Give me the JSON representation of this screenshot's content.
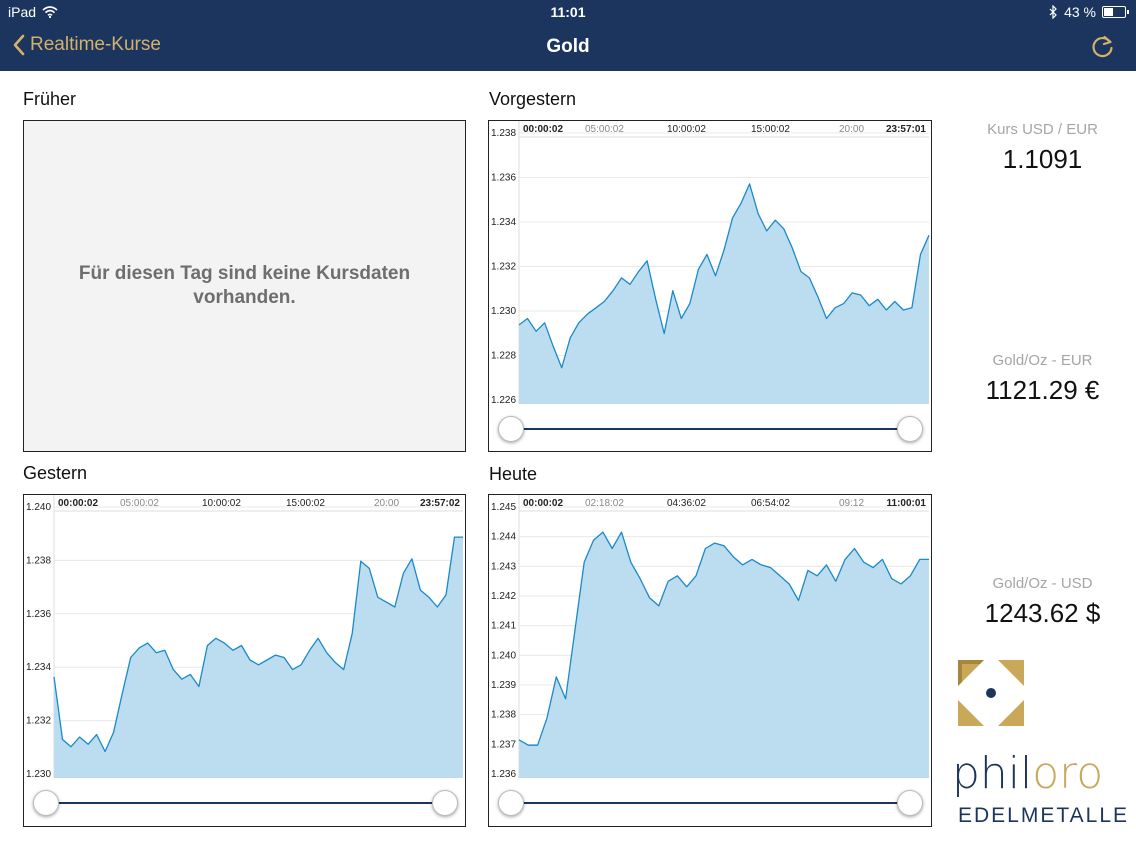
{
  "status": {
    "device": "iPad",
    "time": "11:01",
    "battery": "43 %",
    "battery_level": 0.43
  },
  "nav": {
    "back_label": "Realtime-Kurse",
    "title": "Gold"
  },
  "panels": {
    "frueher": {
      "title": "Früher",
      "empty_line1": "Für diesen Tag sind keine Kursdaten",
      "empty_line2": "vorhanden."
    },
    "vorgestern": {
      "title": "Vorgestern"
    },
    "gestern": {
      "title": "Gestern"
    },
    "heute": {
      "title": "Heute"
    }
  },
  "side": {
    "kurs_label": "Kurs USD / EUR",
    "kurs_value": "1.1091",
    "gold_eur_label": "Gold/Oz - EUR",
    "gold_eur_value": "1121.29 €",
    "gold_usd_label": "Gold/Oz - USD",
    "gold_usd_value": "1243.62 $"
  },
  "logo": {
    "name_part1": "phil",
    "name_part2": "oro",
    "subtitle": "EDELMETALLE"
  },
  "colors": {
    "navbar": "#1c355e",
    "accent_gold": "#d4b16a",
    "area_fill": "#bcdcef",
    "line": "#1a8ac9"
  },
  "chart_data": [
    {
      "type": "area",
      "title": "Vorgestern",
      "x_ticks": [
        "00:00:02",
        "05:00:02",
        "10:00:02",
        "15:00:02",
        "20:00",
        "23:57:01"
      ],
      "y_ticks": [
        "1.238",
        "1.236",
        "1.234",
        "1.232",
        "1.230",
        "1.228",
        "1.226"
      ],
      "ylim": [
        1.2258,
        1.2382
      ],
      "x": [
        0,
        0.5,
        1,
        1.5,
        2,
        2.5,
        3,
        3.5,
        4,
        4.5,
        5,
        5.5,
        6,
        6.5,
        7,
        7.5,
        8,
        8.5,
        9,
        9.5,
        10,
        10.5,
        11,
        11.5,
        12,
        12.5,
        13,
        13.5,
        14,
        14.5,
        15,
        15.5,
        16,
        16.5,
        17,
        17.5,
        18,
        18.5,
        19,
        19.5,
        20,
        20.5,
        21,
        21.5,
        22,
        22.5,
        23,
        23.5,
        24
      ],
      "y": [
        1.2295,
        1.2298,
        1.2292,
        1.2296,
        1.2285,
        1.2275,
        1.2289,
        1.2296,
        1.23,
        1.2303,
        1.2306,
        1.2311,
        1.2317,
        1.2314,
        1.232,
        1.2325,
        1.2307,
        1.2291,
        1.2311,
        1.2298,
        1.2305,
        1.2321,
        1.2328,
        1.2318,
        1.233,
        1.2345,
        1.2352,
        1.2361,
        1.2347,
        1.2339,
        1.2344,
        1.234,
        1.2331,
        1.232,
        1.2317,
        1.2308,
        1.2298,
        1.2303,
        1.2305,
        1.231,
        1.2309,
        1.2304,
        1.2307,
        1.2302,
        1.2306,
        1.2302,
        1.2303,
        1.2328,
        1.2337
      ]
    },
    {
      "type": "area",
      "title": "Gestern",
      "x_ticks": [
        "00:00:02",
        "05:00:02",
        "10:00:02",
        "15:00:02",
        "20:00",
        "23:57:02"
      ],
      "y_ticks": [
        "1.240",
        "1.238",
        "1.236",
        "1.234",
        "1.232",
        "1.230"
      ],
      "ylim": [
        1.2295,
        1.2405
      ],
      "x": [
        0,
        0.5,
        1,
        1.5,
        2,
        2.5,
        3,
        3.5,
        4,
        4.5,
        5,
        5.5,
        6,
        6.5,
        7,
        7.5,
        8,
        8.5,
        9,
        9.5,
        10,
        10.5,
        11,
        11.5,
        12,
        12.5,
        13,
        13.5,
        14,
        14.5,
        15,
        15.5,
        16,
        16.5,
        17,
        17.5,
        18,
        18.5,
        19,
        19.5,
        20,
        20.5,
        21,
        21.5,
        22,
        22.5,
        23,
        23.5,
        24
      ],
      "y": [
        1.2337,
        1.2311,
        1.2308,
        1.2312,
        1.2309,
        1.2313,
        1.2306,
        1.2314,
        1.233,
        1.2345,
        1.2349,
        1.2351,
        1.2347,
        1.2348,
        1.234,
        1.2336,
        1.2338,
        1.2333,
        1.235,
        1.2353,
        1.2351,
        1.2348,
        1.235,
        1.2344,
        1.2342,
        1.2344,
        1.2346,
        1.2345,
        1.234,
        1.2342,
        1.2348,
        1.2353,
        1.2347,
        1.2343,
        1.234,
        1.2355,
        1.2385,
        1.2382,
        1.237,
        1.2368,
        1.2366,
        1.238,
        1.2386,
        1.2373,
        1.237,
        1.2366,
        1.2371,
        1.2395,
        1.2395
      ]
    },
    {
      "type": "area",
      "title": "Heute",
      "x_ticks": [
        "00:00:02",
        "02:18:02",
        "04:36:02",
        "06:54:02",
        "09:12",
        "11:00:01"
      ],
      "y_ticks": [
        "1.245",
        "1.244",
        "1.243",
        "1.242",
        "1.241",
        "1.240",
        "1.239",
        "1.238",
        "1.237",
        "1.236"
      ],
      "ylim": [
        1.2356,
        1.2453
      ],
      "x": [
        0,
        0.25,
        0.5,
        0.75,
        1,
        1.25,
        1.5,
        1.75,
        2,
        2.25,
        2.5,
        2.75,
        3,
        3.25,
        3.5,
        3.75,
        4,
        4.25,
        4.5,
        4.75,
        5,
        5.25,
        5.5,
        5.75,
        6,
        6.25,
        6.5,
        6.75,
        7,
        7.25,
        7.5,
        7.75,
        8,
        8.25,
        8.5,
        8.75,
        9,
        9.25,
        9.5,
        9.75,
        10,
        10.25,
        10.5,
        10.75,
        11
      ],
      "y": [
        1.237,
        1.2368,
        1.2368,
        1.2378,
        1.2393,
        1.2385,
        1.241,
        1.2435,
        1.2443,
        1.2446,
        1.244,
        1.2446,
        1.2435,
        1.2429,
        1.2422,
        1.2419,
        1.2428,
        1.243,
        1.2426,
        1.243,
        1.244,
        1.2442,
        1.2441,
        1.2437,
        1.2434,
        1.2436,
        1.2434,
        1.2433,
        1.243,
        1.2427,
        1.2421,
        1.2432,
        1.243,
        1.2434,
        1.2428,
        1.2436,
        1.244,
        1.2435,
        1.2433,
        1.2436,
        1.2429,
        1.2427,
        1.243,
        1.2436,
        1.2436
      ]
    }
  ]
}
